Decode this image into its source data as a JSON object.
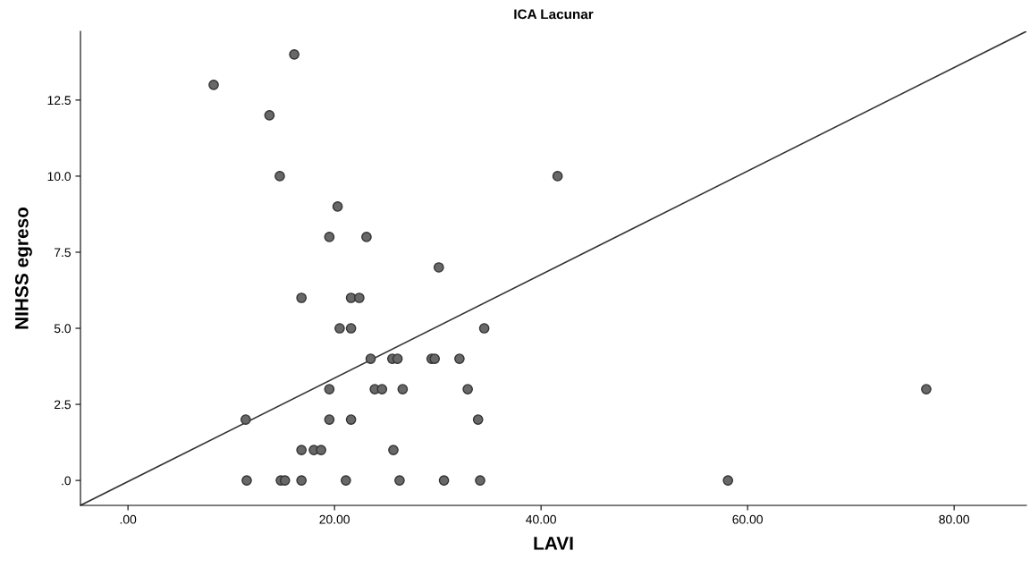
{
  "chart_data": {
    "type": "scatter",
    "title": "ICA Lacunar",
    "xlabel": "LAVI",
    "ylabel": "NIHSS egreso",
    "xlim": [
      -4.6,
      87
    ],
    "ylim": [
      -0.82,
      14.76
    ],
    "xticks": [
      {
        "value": 0,
        "label": ".00"
      },
      {
        "value": 20,
        "label": "20.00"
      },
      {
        "value": 40,
        "label": "40.00"
      },
      {
        "value": 60,
        "label": "60.00"
      },
      {
        "value": 80,
        "label": "80.00"
      }
    ],
    "yticks": [
      {
        "value": 0,
        "label": ".0"
      },
      {
        "value": 2.5,
        "label": "2.5"
      },
      {
        "value": 5,
        "label": "5.0"
      },
      {
        "value": 7.5,
        "label": "7.5"
      },
      {
        "value": 10,
        "label": "10.0"
      },
      {
        "value": 12.5,
        "label": "12.5"
      }
    ],
    "grid": false,
    "marker": "circle",
    "series": [
      {
        "color": "#686868",
        "x": [
          8.3,
          16.1,
          13.7,
          14.7,
          20.3,
          19.5,
          23.1,
          30.1,
          16.8,
          21.6,
          22.4,
          20.5,
          21.6,
          34.5,
          41.6,
          23.5,
          25.6,
          26.1,
          29.4,
          29.7,
          32.1,
          19.5,
          23.9,
          24.6,
          26.6,
          32.9,
          77.3,
          11.4,
          19.5,
          21.6,
          33.9,
          16.8,
          18.0,
          18.7,
          25.7,
          11.5,
          14.8,
          15.2,
          16.8,
          21.1,
          26.3,
          30.6,
          34.1,
          58.1
        ],
        "values": [
          13,
          14,
          12,
          10,
          9,
          8,
          8,
          7,
          6,
          6,
          6,
          5,
          5,
          5,
          10,
          4,
          4,
          4,
          4,
          4,
          4,
          3,
          3,
          3,
          3,
          3,
          3,
          2,
          2,
          2,
          2,
          1,
          1,
          1,
          1,
          0,
          0,
          0,
          0,
          0,
          0,
          0,
          0,
          0
        ]
      },
      {
        "type": "line",
        "color": "#333333",
        "marker": "none",
        "line_style": "solid",
        "x": [
          -4.6,
          87
        ],
        "values": [
          -0.82,
          14.76
        ]
      }
    ]
  }
}
